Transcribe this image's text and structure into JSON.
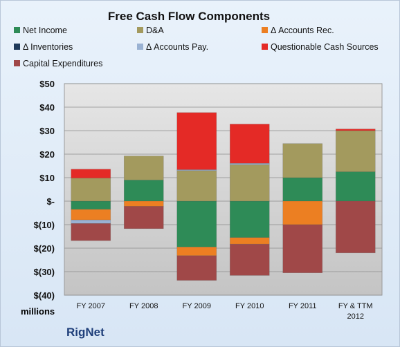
{
  "chart_data": {
    "type": "bar",
    "stacked": true,
    "title": "Free Cash Flow Components",
    "ylabel": "millions",
    "source": "RigNet",
    "categories": [
      "FY 2007",
      "FY 2008",
      "FY 2009",
      "FY 2010",
      "FY 2011",
      "FY & TTM 2012"
    ],
    "ylim": [
      -40,
      50
    ],
    "yticks": [
      50,
      40,
      30,
      20,
      10,
      0,
      -10,
      -20,
      -30,
      -40
    ],
    "ytick_labels": [
      "$50",
      "$40",
      "$30",
      "$20",
      "$10",
      "$-",
      "$(10)",
      "$(20)",
      "$(30)",
      "$(40)"
    ],
    "legend_position": "top",
    "series": [
      {
        "name": "Net Income",
        "color": "#2e8b57",
        "values": [
          -3.5,
          9.0,
          -19.5,
          -15.5,
          10.0,
          12.5
        ]
      },
      {
        "name": "D&A",
        "color": "#a39a5e",
        "values": [
          9.8,
          10.2,
          13.0,
          15.5,
          14.5,
          17.5
        ]
      },
      {
        "name": "Δ Accounts Rec.",
        "color": "#ec7f22",
        "values": [
          -4.5,
          -2.2,
          -3.7,
          -2.8,
          -10.0,
          0.0
        ]
      },
      {
        "name": "Δ Inventories",
        "color": "#1f3a5a",
        "values": [
          0.0,
          0.0,
          0.0,
          0.0,
          0.0,
          0.0
        ]
      },
      {
        "name": "Δ Accounts Pay.",
        "color": "#9ab2d3",
        "values": [
          -1.5,
          0.0,
          0.4,
          0.6,
          0.0,
          0.0
        ]
      },
      {
        "name": "Questionable Cash Sources",
        "color": "#e42a26",
        "values": [
          3.8,
          0.0,
          24.3,
          16.7,
          0.0,
          0.7
        ]
      },
      {
        "name": "Capital Expenditures",
        "color": "#a04848",
        "values": [
          -7.3,
          -9.5,
          -10.5,
          -13.3,
          -20.5,
          -22.0
        ]
      }
    ]
  }
}
